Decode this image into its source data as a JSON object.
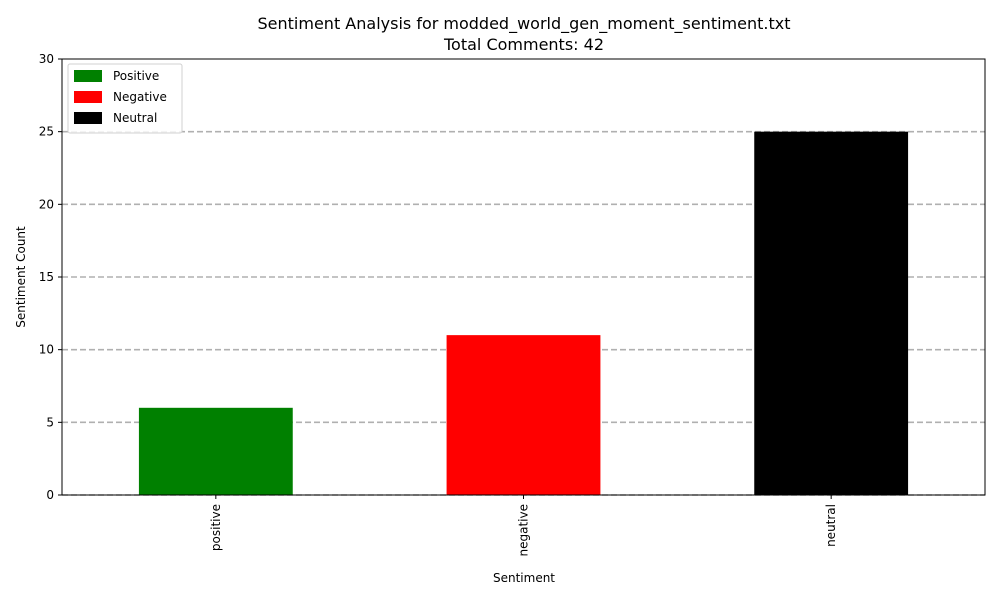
{
  "chart_data": {
    "type": "bar",
    "title": "Sentiment Analysis for modded_world_gen_moment_sentiment.txt",
    "subtitle": "Total Comments: 42",
    "xlabel": "Sentiment",
    "ylabel": "Sentiment Count",
    "categories": [
      "positive",
      "negative",
      "neutral"
    ],
    "values": [
      6,
      11,
      25
    ],
    "colors": [
      "#008000",
      "#ff0000",
      "#000000"
    ],
    "ylim": [
      0,
      30
    ],
    "yticks": [
      0,
      5,
      10,
      15,
      20,
      25,
      30
    ],
    "grid": "horizontal dashed",
    "legend": {
      "position": "top-left",
      "entries": [
        {
          "label": "Positive",
          "color": "#008000"
        },
        {
          "label": "Negative",
          "color": "#ff0000"
        },
        {
          "label": "Neutral",
          "color": "#000000"
        }
      ]
    }
  }
}
